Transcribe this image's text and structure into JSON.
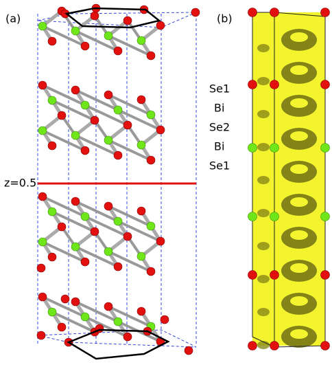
{
  "panels": [
    {
      "label": "(a)",
      "divider_label": "z=0.5"
    },
    {
      "label": "(b)"
    }
  ],
  "layers": [
    "Se1",
    "Bi",
    "Se2",
    "Bi",
    "Se1"
  ]
}
